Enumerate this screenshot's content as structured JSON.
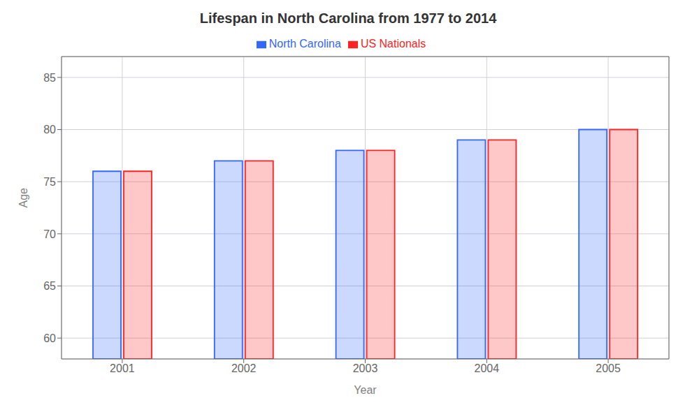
{
  "chart_data": {
    "type": "bar",
    "title": "Lifespan in North Carolina from 1977 to 2014",
    "xlabel": "Year",
    "ylabel": "Age",
    "categories": [
      "2001",
      "2002",
      "2003",
      "2004",
      "2005"
    ],
    "series": [
      {
        "name": "North Carolina",
        "color": "#3366ff",
        "values": [
          76,
          77,
          78,
          79,
          80
        ]
      },
      {
        "name": "US Nationals",
        "color": "#ff2222",
        "values": [
          76,
          77,
          78,
          79,
          80
        ]
      }
    ],
    "ylim": [
      58,
      87
    ],
    "yticks": [
      60,
      65,
      70,
      75,
      80,
      85
    ],
    "grid": true,
    "legend": "top"
  }
}
